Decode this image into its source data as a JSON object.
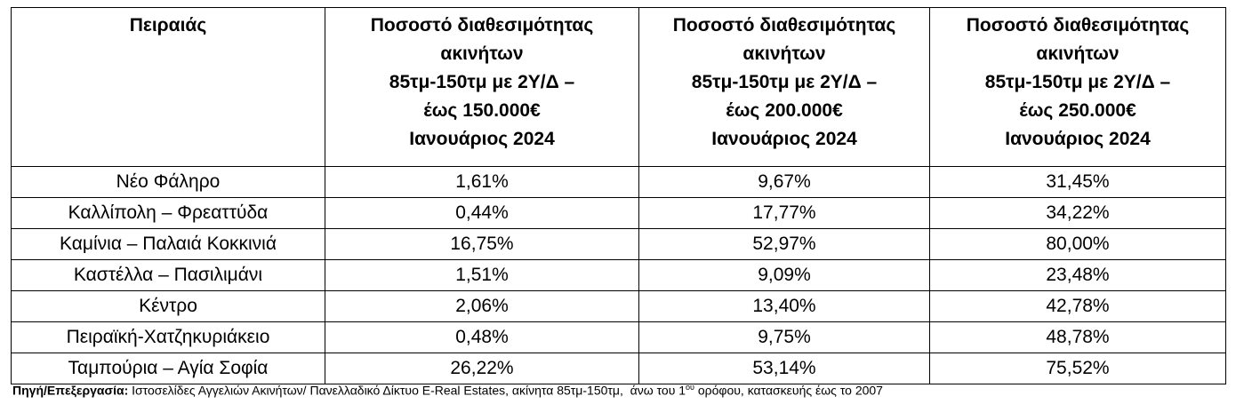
{
  "table": {
    "header": [
      [
        "Πειραιάς"
      ],
      [
        "Ποσοστό διαθεσιμότητας",
        "ακινήτων",
        "85τμ-150τμ με 2Υ/Δ –",
        "έως 150.000€",
        "Ιανουάριος 2024"
      ],
      [
        "Ποσοστό διαθεσιμότητας",
        "ακινήτων",
        "85τμ-150τμ με 2Υ/Δ –",
        "έως 200.000€",
        "Ιανουάριος 2024"
      ],
      [
        "Ποσοστό διαθεσιμότητας",
        "ακινήτων",
        "85τμ-150τμ με 2Υ/Δ –",
        "έως 250.000€",
        "Ιανουάριος 2024"
      ]
    ],
    "rows": [
      [
        "Νέο Φάληρο",
        "1,61%",
        "9,67%",
        "31,45%"
      ],
      [
        "Καλλίπολη – Φρεαττύδα",
        "0,44%",
        "17,77%",
        "34,22%"
      ],
      [
        "Καμίνια – Παλαιά Κοκκινιά",
        "16,75%",
        "52,97%",
        "80,00%"
      ],
      [
        "Καστέλλα – Πασιλιμάνι",
        "1,51%",
        "9,09%",
        "23,48%"
      ],
      [
        "Κέντρο",
        "2,06%",
        "13,40%",
        "42,78%"
      ],
      [
        "Πειραϊκή-Χατζηκυριάκειο",
        "0,48%",
        "9,75%",
        "48,78%"
      ],
      [
        "Ταμπούρια – Αγία Σοφία",
        "26,22%",
        "53,14%",
        "75,52%"
      ]
    ]
  },
  "footer": {
    "label": "Πηγή/Επεξεργασία:",
    "text": "Ιστοσελίδες Αγγελιών Ακινήτων/ Πανελλαδικό Δίκτυο E-Real Estates, ακίνητα 85τμ-150τμ,  άνω του 1",
    "superscript": "ου",
    "text_end": "ορόφου, κατασκευής έως το 2007"
  }
}
